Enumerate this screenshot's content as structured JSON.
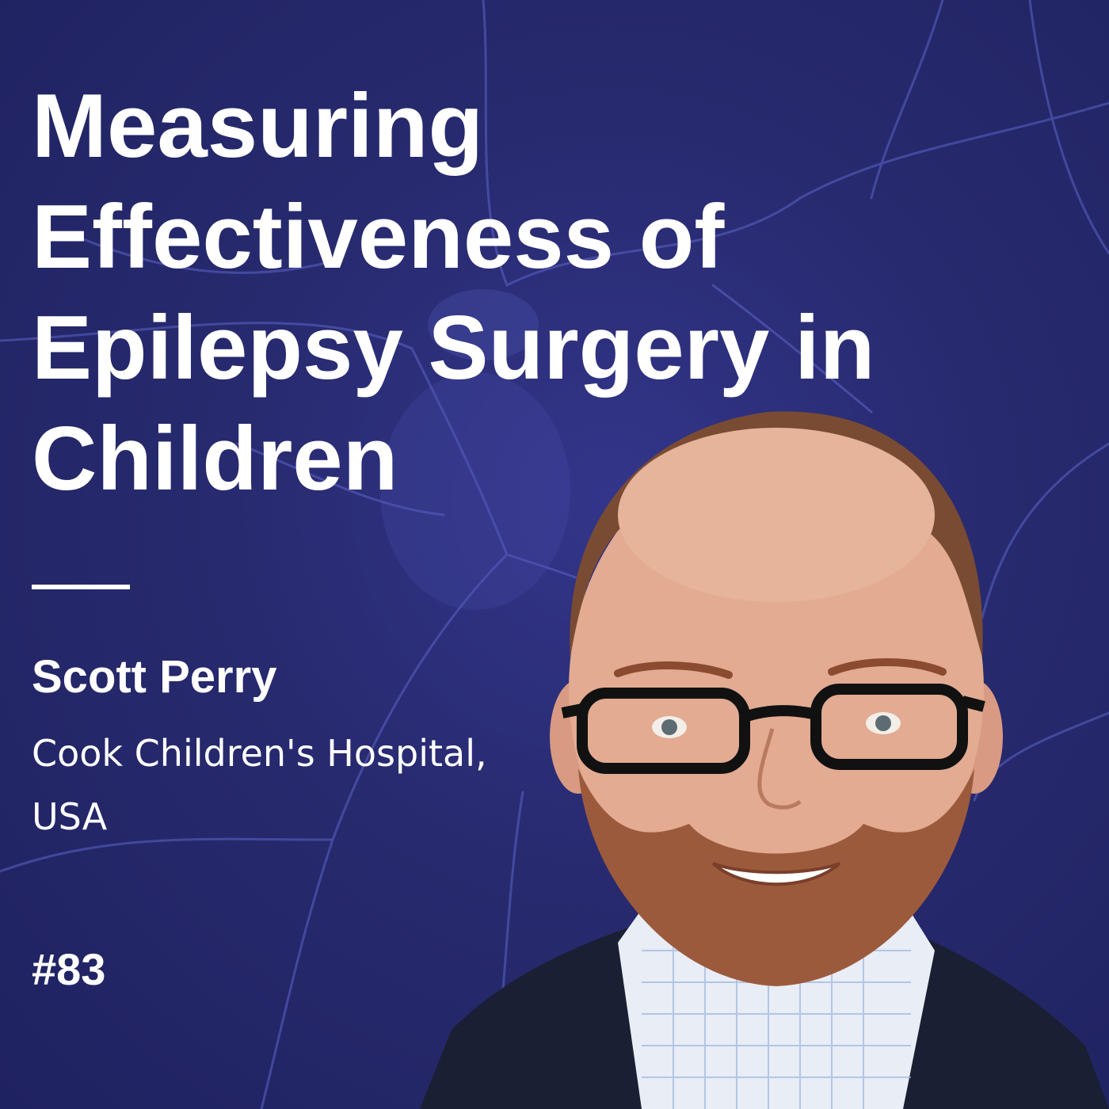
{
  "episode_card": {
    "title_lines": [
      "Measuring",
      "Effectiveness of",
      "Epilepsy Surgery in",
      "Children"
    ],
    "guest_name": "Scott Perry",
    "affiliation_lines": [
      "Cook Children's Hospital,",
      "USA"
    ],
    "episode_number": "#83"
  },
  "colors": {
    "background": "#272a6e",
    "text": "#ffffff",
    "neuron_lines": "#5c64c9"
  },
  "icons": {
    "background_image": "neuron-illustration",
    "guest_photo": "guest-portrait-photo"
  }
}
